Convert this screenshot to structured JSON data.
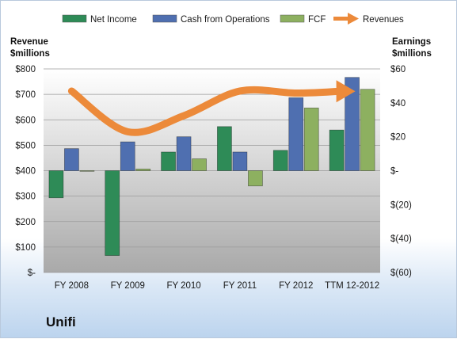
{
  "company": "Unifi",
  "colors": {
    "net_income": "#2e8b57",
    "cash_from_operations": "#4f6fb0",
    "fcf": "#8db060",
    "revenues": "#ec8a3a"
  },
  "chart_data": {
    "type": "bar",
    "categories": [
      "FY 2008",
      "FY 2009",
      "FY 2010",
      "FY 2011",
      "FY 2012",
      "TTM 12-2012"
    ],
    "series": [
      {
        "name": "Net Income",
        "axis": "right",
        "values": [
          -16,
          -50,
          11,
          26,
          12,
          24
        ]
      },
      {
        "name": "Cash from Operations",
        "axis": "right",
        "values": [
          13,
          17,
          20,
          11,
          43,
          55
        ]
      },
      {
        "name": "FCF",
        "axis": "right",
        "values": [
          0,
          1,
          7,
          -9,
          37,
          48
        ]
      },
      {
        "name": "Revenues",
        "axis": "left",
        "type": "line",
        "values": [
          713,
          553,
          616,
          713,
          705,
          712
        ]
      }
    ],
    "left_axis": {
      "title_lines": [
        "Revenue",
        "$millions"
      ],
      "ticks": [
        0,
        100,
        200,
        300,
        400,
        500,
        600,
        700,
        800
      ],
      "tick_labels": [
        "$-",
        "$100",
        "$200",
        "$300",
        "$400",
        "$500",
        "$600",
        "$700",
        "$800"
      ],
      "ylim": [
        0,
        800
      ]
    },
    "right_axis": {
      "title_lines": [
        "Earnings",
        "$millions"
      ],
      "ticks": [
        -60,
        -40,
        -20,
        0,
        20,
        40,
        60
      ],
      "tick_labels": [
        "$(60)",
        "$(40)",
        "$(20)",
        "$-",
        "$20",
        "$40",
        "$60"
      ],
      "ylim": [
        -60,
        60
      ]
    },
    "legend_position": "top"
  }
}
